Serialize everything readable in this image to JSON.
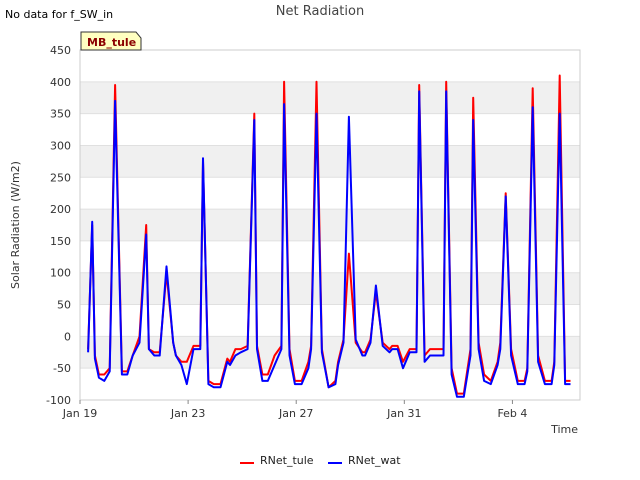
{
  "no_data_note": "No data for f_SW_in",
  "chart_data": {
    "type": "line",
    "title": "Net Radiation",
    "xlabel": "Time",
    "ylabel": "Solar Radiation (W/m2)",
    "ylim": [
      -100,
      450
    ],
    "xlim": [
      19,
      37.5
    ],
    "y_ticks": [
      -100,
      -50,
      0,
      50,
      100,
      150,
      200,
      250,
      300,
      350,
      400,
      450
    ],
    "x_ticks": [
      {
        "value": 19,
        "label": "Jan 19"
      },
      {
        "value": 23,
        "label": "Jan 23"
      },
      {
        "value": 27,
        "label": "Jan 27"
      },
      {
        "value": 31,
        "label": "Jan 31"
      },
      {
        "value": 35,
        "label": "Feb 4"
      }
    ],
    "site_badge": "MB_tule",
    "grid": true,
    "legend_position": "bottom",
    "series": [
      {
        "name": "RNet_tule",
        "color": "#ff0000",
        "x": [
          19.3,
          19.45,
          19.55,
          19.7,
          19.9,
          20.1,
          20.3,
          20.55,
          20.75,
          20.95,
          21.2,
          21.45,
          21.55,
          21.75,
          21.95,
          22.2,
          22.45,
          22.55,
          22.75,
          22.95,
          23.2,
          23.45,
          23.55,
          23.75,
          23.95,
          24.2,
          24.45,
          24.55,
          24.75,
          24.95,
          25.2,
          25.45,
          25.55,
          25.75,
          25.95,
          26.2,
          26.45,
          26.55,
          26.75,
          26.95,
          27.2,
          27.45,
          27.55,
          27.75,
          27.95,
          28.2,
          28.45,
          28.55,
          28.75,
          28.95,
          29.2,
          29.45,
          29.55,
          29.75,
          29.95,
          30.2,
          30.45,
          30.55,
          30.75,
          30.95,
          31.2,
          31.45,
          31.55,
          31.75,
          31.95,
          32.2,
          32.45,
          32.55,
          32.75,
          32.95,
          33.2,
          33.45,
          33.55,
          33.75,
          33.95,
          34.2,
          34.45,
          34.55,
          34.75,
          34.95,
          35.2,
          35.45,
          35.55,
          35.75,
          35.95,
          36.2,
          36.45,
          36.55,
          36.75,
          36.95,
          37.15
        ],
        "y": [
          -20,
          175,
          -30,
          -60,
          -60,
          -50,
          395,
          -55,
          -55,
          -30,
          0,
          175,
          -20,
          -25,
          -25,
          100,
          -10,
          -30,
          -40,
          -40,
          -15,
          -15,
          275,
          -70,
          -75,
          -75,
          -35,
          -40,
          -20,
          -20,
          -15,
          350,
          -15,
          -60,
          -60,
          -30,
          -15,
          400,
          -20,
          -70,
          -70,
          -40,
          -15,
          400,
          -20,
          -80,
          -70,
          -40,
          -5,
          130,
          -10,
          -25,
          -25,
          -5,
          70,
          -10,
          -20,
          -15,
          -15,
          -40,
          -20,
          -20,
          395,
          -30,
          -20,
          -20,
          -20,
          400,
          -50,
          -90,
          -90,
          -20,
          375,
          -10,
          -60,
          -70,
          -40,
          -10,
          225,
          -20,
          -70,
          -70,
          -50,
          390,
          -30,
          -70,
          -70,
          -40,
          410,
          -70,
          -70
        ],
        "values_note": ""
      },
      {
        "name": "RNet_wat",
        "color": "#0000ff",
        "x": [
          19.3,
          19.45,
          19.55,
          19.7,
          19.9,
          20.1,
          20.3,
          20.55,
          20.75,
          20.95,
          21.2,
          21.45,
          21.55,
          21.75,
          21.95,
          22.2,
          22.45,
          22.55,
          22.75,
          22.95,
          23.2,
          23.45,
          23.55,
          23.75,
          23.95,
          24.2,
          24.45,
          24.55,
          24.75,
          24.95,
          25.2,
          25.45,
          25.55,
          25.75,
          25.95,
          26.2,
          26.45,
          26.55,
          26.75,
          26.95,
          27.2,
          27.45,
          27.55,
          27.75,
          27.95,
          28.2,
          28.45,
          28.55,
          28.75,
          28.95,
          29.2,
          29.45,
          29.55,
          29.75,
          29.95,
          30.2,
          30.45,
          30.55,
          30.75,
          30.95,
          31.2,
          31.45,
          31.55,
          31.75,
          31.95,
          32.2,
          32.45,
          32.55,
          32.75,
          32.95,
          33.2,
          33.45,
          33.55,
          33.75,
          33.95,
          34.2,
          34.45,
          34.55,
          34.75,
          34.95,
          35.2,
          35.45,
          35.55,
          35.75,
          35.95,
          36.2,
          36.45,
          36.55,
          36.75,
          36.95,
          37.15
        ],
        "y": [
          -25,
          180,
          -35,
          -65,
          -70,
          -55,
          370,
          -60,
          -60,
          -30,
          -10,
          160,
          -20,
          -30,
          -30,
          110,
          -10,
          -30,
          -45,
          -75,
          -20,
          -20,
          280,
          -75,
          -80,
          -80,
          -40,
          -45,
          -30,
          -25,
          -20,
          340,
          -20,
          -70,
          -70,
          -45,
          -20,
          365,
          -30,
          -75,
          -75,
          -50,
          -20,
          350,
          -25,
          -80,
          -75,
          -45,
          -10,
          345,
          -5,
          -30,
          -30,
          -10,
          80,
          -15,
          -25,
          -20,
          -20,
          -50,
          -25,
          -25,
          385,
          -40,
          -30,
          -30,
          -30,
          385,
          -60,
          -95,
          -95,
          -30,
          340,
          -20,
          -70,
          -75,
          -45,
          -20,
          220,
          -30,
          -75,
          -75,
          -55,
          360,
          -40,
          -75,
          -75,
          -45,
          350,
          -75,
          -75
        ],
        "values_note": ""
      }
    ]
  }
}
